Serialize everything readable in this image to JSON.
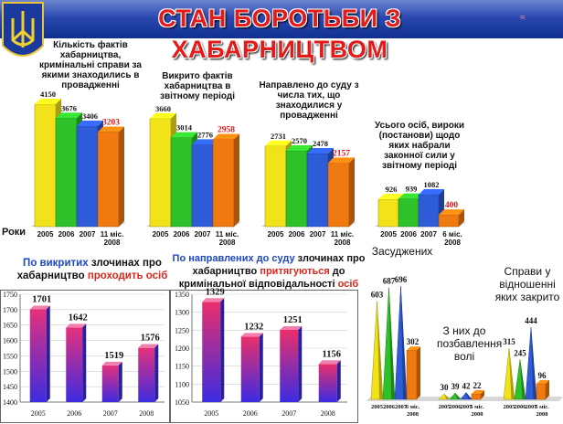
{
  "header": {
    "title": "СТАН БОРОТЬБИ З ХАБАРНИЦТВОМ",
    "corner_mark": "≈"
  },
  "top_row": {
    "years_caption": "Роки",
    "panel1_title": "Кількість фактів хабарництва, кримінальні справи за якими знаходились в провадженні",
    "panel2_title": "Викрито фактів хабарництва в звітному періоді",
    "panel3_title": "Направлено до суду з числа тих, що знаходилися у провадженні",
    "panel4_title": "Усього осіб, вироки (постанови) щодо яких набрали законної сили у звітному періоді"
  },
  "bottom_left": {
    "title_parts": [
      "По викритих",
      " злочинах про хабарництво ",
      "проходить осіб"
    ]
  },
  "bottom_mid": {
    "title_parts": [
      "По направлених до суду",
      " злочинах про хабарництво ",
      "притягуються",
      " до кримінальної відповідальності ",
      "осіб"
    ]
  },
  "bottom_right": {
    "note_convicted": "Засуджених",
    "note_prison": "З них до позбавлення волі",
    "note_cases": "Справи у відношенні яких закрито"
  },
  "chart_data": [
    {
      "type": "bar",
      "title": "Кількість фактів хабарництва, кримінальні справи за якими знаходились в провадженні",
      "categories": [
        "2005",
        "2006",
        "2007",
        "11 міс. 2008"
      ],
      "values": [
        4150,
        3676,
        3406,
        3203
      ],
      "colors": [
        "#f2e21a",
        "#2fc12a",
        "#2e5bd8",
        "#f07a10"
      ]
    },
    {
      "type": "bar",
      "title": "Викрито фактів хабарництва в звітному періоді",
      "categories": [
        "2005",
        "2006",
        "2007",
        "11 міс. 2008"
      ],
      "values": [
        3660,
        3014,
        2776,
        2958
      ],
      "colors": [
        "#f2e21a",
        "#2fc12a",
        "#2e5bd8",
        "#f07a10"
      ]
    },
    {
      "type": "bar",
      "title": "Направлено до суду з числа тих, що знаходилися у провадженні",
      "categories": [
        "2005",
        "2006",
        "2007",
        "11 міс. 2008"
      ],
      "values": [
        2731,
        2570,
        2478,
        2157
      ],
      "colors": [
        "#f2e21a",
        "#2fc12a",
        "#2e5bd8",
        "#f07a10"
      ]
    },
    {
      "type": "bar",
      "title": "Усього осіб, вироки (постанови) щодо яких набрали законної сили у звітному періоді",
      "categories": [
        "2005",
        "2006",
        "2007",
        "6 міс. 2008"
      ],
      "values": [
        926,
        939,
        1082,
        400
      ],
      "colors": [
        "#f2e21a",
        "#2fc12a",
        "#2e5bd8",
        "#f07a10"
      ]
    },
    {
      "type": "bar",
      "title": "По викритих злочинах про хабарництво проходить осіб",
      "categories": [
        "2005",
        "2006",
        "2007",
        "2008"
      ],
      "values": [
        1701,
        1642,
        1519,
        1576
      ],
      "ylim": [
        1400,
        1750
      ],
      "yticks": [
        1400,
        1450,
        1500,
        1550,
        1600,
        1650,
        1700,
        1750
      ],
      "grid": true
    },
    {
      "type": "bar",
      "title": "По направлених до суду злочинах про хабарництво притягуються до кримінальної відповідальності осіб",
      "categories": [
        "2005",
        "2006",
        "2007",
        "2008"
      ],
      "values": [
        1329,
        1232,
        1251,
        1156
      ],
      "ylim": [
        1050,
        1350
      ],
      "yticks": [
        1050,
        1100,
        1150,
        1200,
        1250,
        1300,
        1350
      ],
      "grid": true
    },
    {
      "type": "bar",
      "title": "Засуджених",
      "categories": [
        "2005",
        "2006",
        "2007",
        "6 міс. 2008"
      ],
      "values": [
        603,
        687,
        696,
        302
      ],
      "colors": [
        "#f2e21a",
        "#2fc12a",
        "#2e5bd8",
        "#f07a10"
      ]
    },
    {
      "type": "bar",
      "title": "З них до позбавлення волі",
      "categories": [
        "2005",
        "2006",
        "2007",
        "6 міс. 2008"
      ],
      "values": [
        30,
        39,
        42,
        22
      ],
      "colors": [
        "#f2e21a",
        "#2fc12a",
        "#2e5bd8",
        "#f07a10"
      ]
    },
    {
      "type": "bar",
      "title": "Справи у відношенні яких закрито",
      "categories": [
        "2005",
        "2006",
        "2007",
        "6 міс. 2008"
      ],
      "values": [
        315,
        245,
        444,
        96
      ],
      "colors": [
        "#f2e21a",
        "#2fc12a",
        "#2e5bd8",
        "#f07a10"
      ]
    }
  ]
}
